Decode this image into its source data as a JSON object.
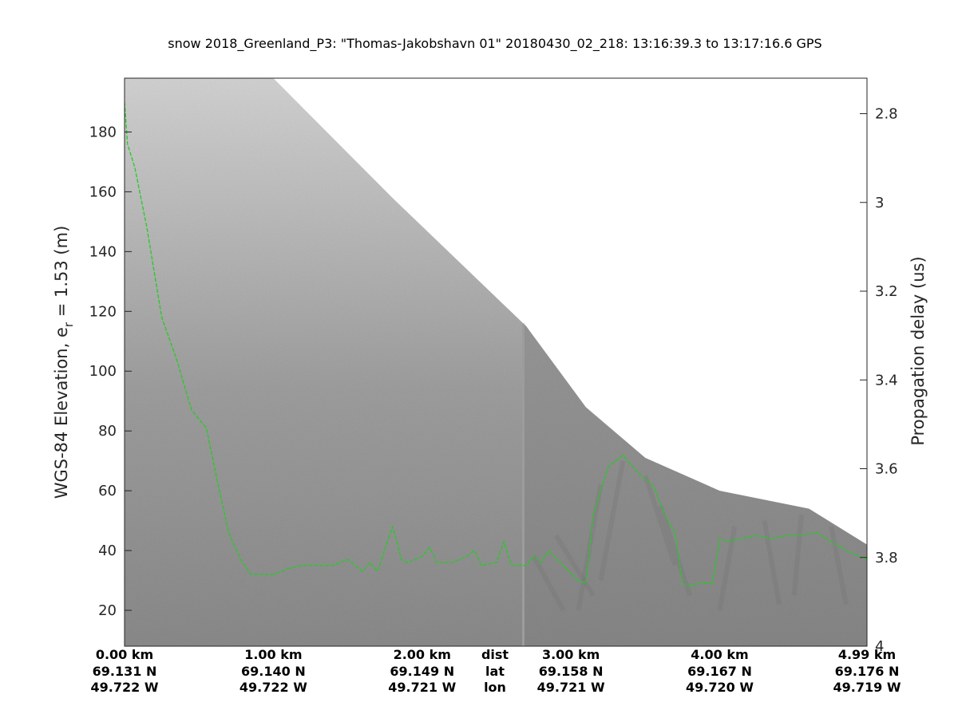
{
  "chart_data": {
    "type": "radar echogram",
    "title": "snow 2018_Greenland_P3: \"Thomas-Jakobshavn 01\"  20180430_02_218: 13:16:39.3 to 13:17:16.6 GPS",
    "ylabel_left": "WGS-84 Elevation, e",
    "ylabel_left_sub": "r",
    "ylabel_left_tail": " = 1.53 (m)",
    "ylabel_right": "Propagation delay (us)",
    "yaxis_left": {
      "range": [
        8,
        198
      ],
      "ticks": [
        20,
        40,
        60,
        80,
        100,
        120,
        140,
        160,
        180
      ]
    },
    "yaxis_right": {
      "range": [
        2.72,
        4.0
      ],
      "ticks": [
        "2.8",
        "3",
        "3.2",
        "3.4",
        "3.6",
        "3.8",
        "4"
      ]
    },
    "xaxis_km_range": [
      0,
      4.99
    ],
    "bottom_row_labels": [
      "dist",
      "lat",
      "lon"
    ],
    "bottom_columns": [
      {
        "km": 0.0,
        "dist": "0.00 km",
        "lat": "69.131 N",
        "lon": "49.722 W"
      },
      {
        "km": 1.0,
        "dist": "1.00 km",
        "lat": "69.140 N",
        "lon": "49.722 W"
      },
      {
        "km": 2.0,
        "dist": "2.00 km",
        "lat": "69.149 N",
        "lon": "49.721 W"
      },
      {
        "km": 3.0,
        "dist": "3.00 km",
        "lat": "69.158 N",
        "lon": "49.721 W"
      },
      {
        "km": 4.0,
        "dist": "4.00 km",
        "lat": "69.167 N",
        "lon": "49.720 W"
      },
      {
        "km": 4.99,
        "dist": "4.99 km",
        "lat": "69.176 N",
        "lon": "49.719 W"
      }
    ],
    "surface_top": {
      "x_km": [
        0.0,
        1.0,
        1.8,
        2.7,
        3.1,
        3.5,
        4.0,
        4.6,
        4.99
      ],
      "elev_m": [
        198,
        198,
        158,
        115,
        88,
        71,
        60,
        54,
        42
      ]
    },
    "tracked_layer": {
      "color": "#22cc22",
      "x_km": [
        0.0,
        0.02,
        0.07,
        0.15,
        0.25,
        0.35,
        0.45,
        0.55,
        0.62,
        0.7,
        0.78,
        0.85,
        0.9,
        1.0,
        1.1,
        1.2,
        1.3,
        1.4,
        1.5,
        1.6,
        1.65,
        1.7,
        1.8,
        1.83,
        1.86,
        1.9,
        2.0,
        2.05,
        2.1,
        2.2,
        2.3,
        2.35,
        2.4,
        2.5,
        2.55,
        2.6,
        2.7,
        2.75,
        2.8,
        2.85,
        2.95,
        3.05,
        3.1,
        3.15,
        3.25,
        3.35,
        3.45,
        3.55,
        3.65,
        3.7,
        3.75,
        3.8,
        3.85,
        3.95,
        4.0,
        4.05,
        4.15,
        4.25,
        4.35,
        4.45,
        4.55,
        4.65,
        4.75,
        4.85,
        4.99
      ],
      "elev_m": [
        190,
        176,
        168,
        148,
        118,
        104,
        87,
        81,
        64,
        46,
        37,
        32,
        32,
        32,
        34,
        35,
        35,
        35,
        37,
        33,
        36,
        33,
        48,
        43,
        37,
        36,
        38,
        41,
        36,
        36,
        38,
        40,
        35,
        36,
        43,
        35,
        35,
        38,
        36,
        40,
        35,
        30,
        29,
        52,
        68,
        72,
        66,
        62,
        50,
        46,
        29,
        28,
        29,
        29,
        44,
        43,
        44,
        45,
        44,
        45,
        45,
        46,
        43,
        40,
        37
      ]
    },
    "image": {
      "background": "#8e8e8e",
      "overlap_start_km": 2.68,
      "overlap_end_km": 2.72
    }
  }
}
